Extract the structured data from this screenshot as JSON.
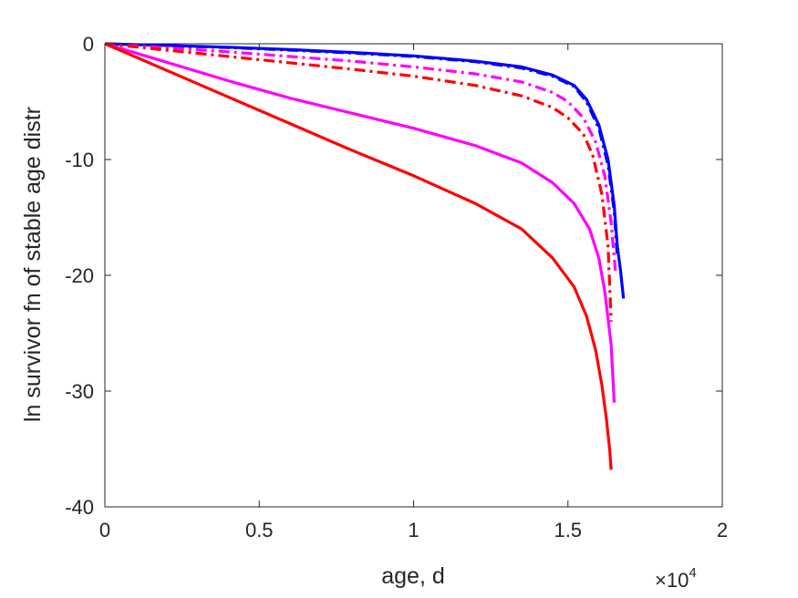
{
  "chart_data": {
    "type": "line",
    "xlabel": "age, d",
    "ylabel": "ln survivor fn of stable age distr",
    "x_multiplier": {
      "base": "×10",
      "exponent": "4"
    },
    "xlim": [
      0,
      2
    ],
    "ylim": [
      -40,
      0
    ],
    "xticks": [
      "0",
      "0.5",
      "1",
      "1.5",
      "2"
    ],
    "yticks": [
      "0",
      "-10",
      "-20",
      "-30",
      "-40"
    ],
    "grid": false,
    "legend": "none",
    "series": [
      {
        "color": "#0000ff",
        "dash": "solid",
        "x": [
          0,
          0.2,
          0.4,
          0.6,
          0.8,
          1.0,
          1.2,
          1.35,
          1.45,
          1.52,
          1.56,
          1.6,
          1.63,
          1.65,
          1.66,
          1.67,
          1.68
        ],
        "y": [
          0,
          -0.15,
          -0.3,
          -0.5,
          -0.75,
          -1.05,
          -1.5,
          -2.0,
          -2.7,
          -3.6,
          -4.8,
          -7.0,
          -10.0,
          -14.0,
          -17.5,
          -19.5,
          -22.0
        ]
      },
      {
        "color": "#0000ff",
        "dash": "dashdot",
        "x": [
          0,
          0.2,
          0.4,
          0.6,
          0.8,
          1.0,
          1.2,
          1.35,
          1.45,
          1.52,
          1.56,
          1.6,
          1.63,
          1.65,
          1.66
        ],
        "y": [
          0,
          -0.17,
          -0.33,
          -0.55,
          -0.8,
          -1.1,
          -1.55,
          -2.1,
          -2.8,
          -3.7,
          -5.0,
          -7.3,
          -10.5,
          -14.5,
          -18.5
        ]
      },
      {
        "color": "#ff00ff",
        "dash": "dashdot",
        "x": [
          0,
          0.2,
          0.4,
          0.6,
          0.8,
          1.0,
          1.2,
          1.35,
          1.45,
          1.5,
          1.55,
          1.59,
          1.62,
          1.64,
          1.655
        ],
        "y": [
          0,
          -0.35,
          -0.7,
          -1.1,
          -1.5,
          -2.0,
          -2.6,
          -3.3,
          -4.2,
          -5.0,
          -6.4,
          -8.5,
          -11.5,
          -15.5,
          -20.0
        ]
      },
      {
        "color": "#ff0000",
        "dash": "dashdot",
        "x": [
          0,
          0.2,
          0.4,
          0.6,
          0.8,
          1.0,
          1.2,
          1.35,
          1.45,
          1.5,
          1.55,
          1.58,
          1.61,
          1.63,
          1.64
        ],
        "y": [
          0,
          -0.55,
          -1.1,
          -1.65,
          -2.2,
          -2.8,
          -3.6,
          -4.5,
          -5.5,
          -6.4,
          -7.8,
          -9.6,
          -13.0,
          -17.5,
          -24.0
        ]
      },
      {
        "color": "#ff00ff",
        "dash": "solid",
        "x": [
          0,
          0.2,
          0.4,
          0.6,
          0.8,
          1.0,
          1.2,
          1.35,
          1.45,
          1.52,
          1.57,
          1.6,
          1.62,
          1.64,
          1.65
        ],
        "y": [
          0,
          -1.6,
          -3.2,
          -4.7,
          -6.0,
          -7.3,
          -8.8,
          -10.3,
          -12.0,
          -13.8,
          -16.0,
          -18.5,
          -21.5,
          -26.0,
          -31.0
        ]
      },
      {
        "color": "#ff0000",
        "dash": "solid",
        "x": [
          0,
          0.2,
          0.4,
          0.6,
          0.8,
          1.0,
          1.2,
          1.35,
          1.45,
          1.52,
          1.56,
          1.59,
          1.61,
          1.625,
          1.635,
          1.64
        ],
        "y": [
          0,
          -2.3,
          -4.6,
          -6.9,
          -9.2,
          -11.4,
          -13.8,
          -16.0,
          -18.5,
          -21.0,
          -23.5,
          -26.5,
          -29.5,
          -32.5,
          -35.0,
          -36.8
        ]
      }
    ]
  }
}
